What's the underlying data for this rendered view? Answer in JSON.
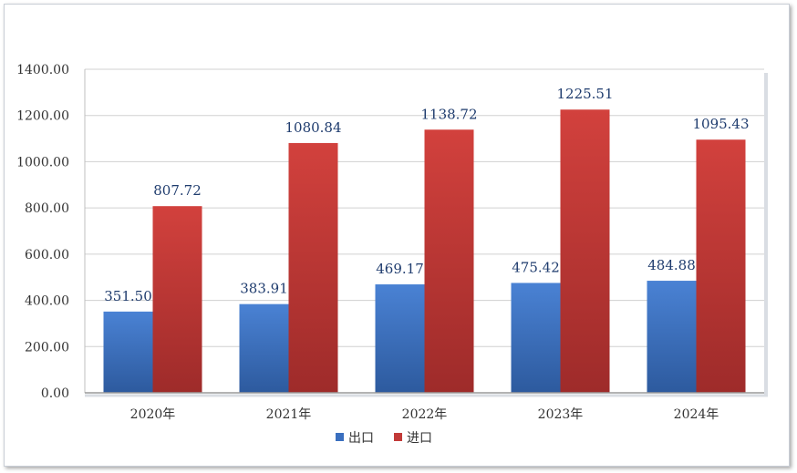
{
  "chart_data": {
    "type": "bar",
    "categories": [
      "2020年",
      "2021年",
      "2022年",
      "2023年",
      "2024年"
    ],
    "series": [
      {
        "name": "出口",
        "values": [
          351.5,
          383.91,
          469.17,
          475.42,
          484.88
        ],
        "color": "#3a6fbf"
      },
      {
        "name": "进口",
        "values": [
          807.72,
          1080.84,
          1138.72,
          1225.51,
          1095.43
        ],
        "color": "#c23a38"
      }
    ],
    "yticks": [
      "0.00",
      "200.00",
      "400.00",
      "600.00",
      "800.00",
      "1000.00",
      "1200.00",
      "1400.00"
    ],
    "ylim": [
      0,
      1400
    ],
    "grid": true,
    "legend_position": "bottom",
    "title": "",
    "xlabel": "",
    "ylabel": ""
  }
}
